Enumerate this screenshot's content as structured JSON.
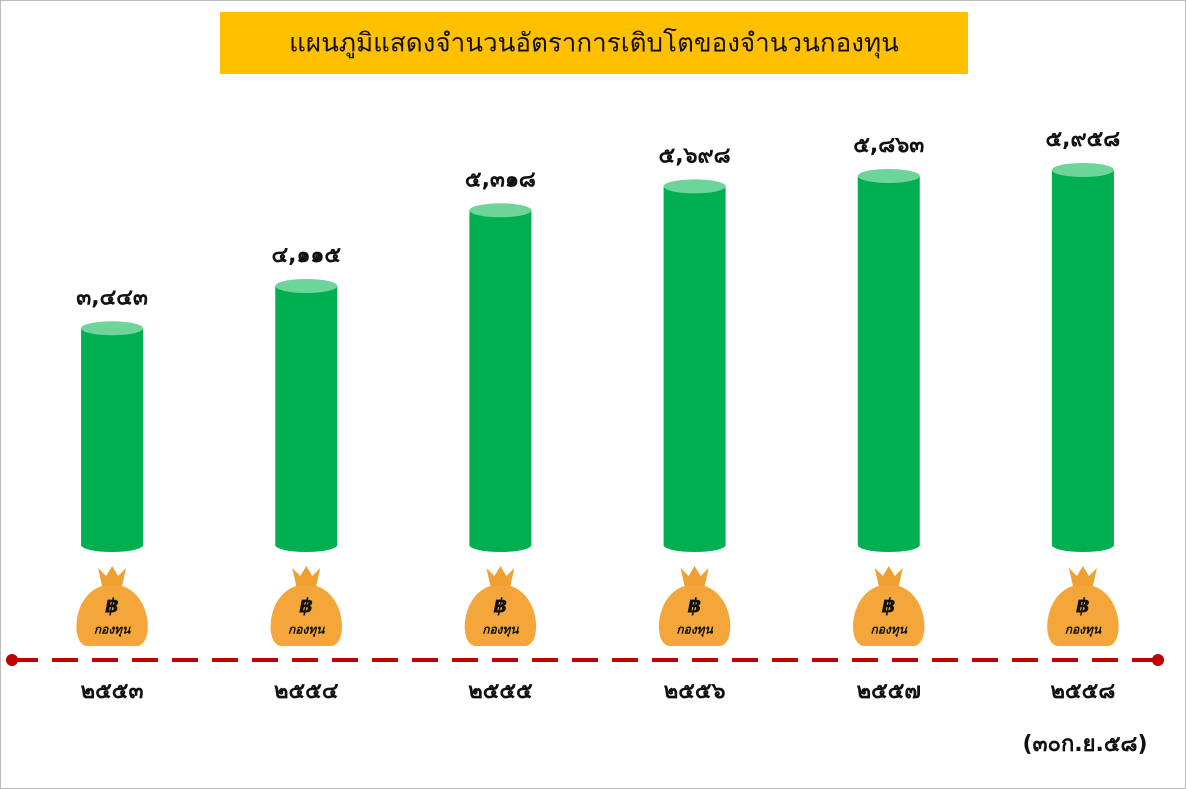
{
  "chart_data": {
    "type": "bar",
    "title": "แผนภูมิแสดงจำนวนอัตราการเติบโตของจำนวนกองทุน",
    "categories": [
      "๒๕๕๓",
      "๒๕๕๔",
      "๒๕๕๕",
      "๒๕๕๖",
      "๒๕๕๗",
      "๒๕๕๘"
    ],
    "values": [
      3443,
      4115,
      5318,
      5698,
      5863,
      5958
    ],
    "value_labels": [
      "๓,๔๔๓",
      "๔,๑๑๕",
      "๕,๓๑๘",
      "๕,๖๙๘",
      "๕,๘๖๓",
      "๕,๙๕๘"
    ],
    "color": "#00b050",
    "icon_symbol": "฿",
    "icon_label": "กองทุน",
    "annotation": "(๓๐ก.ย.๕๘)"
  }
}
